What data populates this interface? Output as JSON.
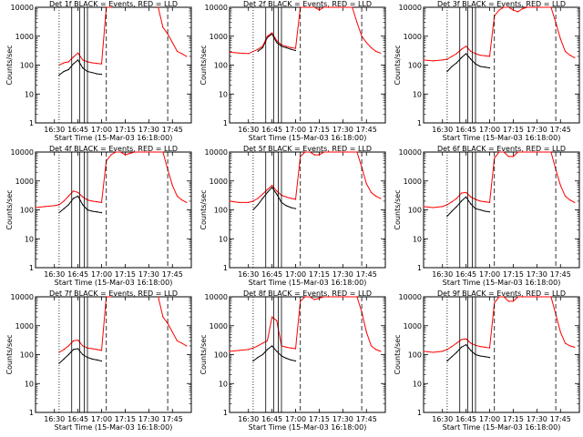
{
  "figure": {
    "ylabel": "Counts/sec",
    "xlabel": "Start Time (15-Mar-03 16:18:00)",
    "y_ticks": [
      "1",
      "10",
      "100",
      "1000",
      "10000"
    ],
    "x_ticks": [
      "16:30",
      "16:45",
      "17:00",
      "17:15",
      "17:30",
      "17:45"
    ],
    "events_color": "#000000",
    "lld_color": "#ff0000"
  },
  "chart_data": [
    {
      "type": "line",
      "title": "Det 1f BLACK = Events, RED = LLD",
      "xlabel": "Start Time (15-Mar-03 16:18:00)",
      "ylabel": "Counts/sec",
      "xlim": [
        "16:18",
        "17:57"
      ],
      "ylim": [
        1,
        10000
      ],
      "yscale": "log",
      "x": [
        "16:33",
        "16:36",
        "16:39",
        "16:42",
        "16:45",
        "16:48",
        "16:51",
        "16:54",
        "16:57",
        "17:00",
        "17:03",
        "17:06",
        "17:09",
        "17:12",
        "17:15",
        "17:18",
        "17:21",
        "17:24",
        "17:27",
        "17:30",
        "17:33",
        "17:36",
        "17:39",
        "17:42",
        "17:45",
        "17:48",
        "17:51",
        "17:54"
      ],
      "series": [
        {
          "name": "BLACK = Events",
          "values": [
            45,
            60,
            70,
            110,
            150,
            80,
            60,
            55,
            50,
            48,
            null,
            null,
            null,
            null,
            null,
            null,
            null,
            null,
            null,
            null,
            null,
            null,
            null,
            null,
            null,
            null,
            null,
            null
          ]
        },
        {
          "name": "RED = LLD",
          "values": [
            100,
            120,
            130,
            190,
            260,
            150,
            130,
            120,
            115,
            110,
            10000,
            10000,
            null,
            null,
            null,
            null,
            null,
            null,
            null,
            null,
            null,
            10000,
            2000,
            1200,
            600,
            300,
            250,
            200
          ]
        }
      ]
    },
    {
      "type": "line",
      "title": "Det 2f BLACK = Events, RED = LLD",
      "xlabel": "Start Time (15-Mar-03 16:18:00)",
      "ylabel": "Counts/sec",
      "xlim": [
        "16:18",
        "17:57"
      ],
      "ylim": [
        1,
        10000
      ],
      "yscale": "log",
      "x": [
        "16:18",
        "16:24",
        "16:30",
        "16:36",
        "16:39",
        "16:42",
        "16:45",
        "16:48",
        "16:51",
        "16:54",
        "16:57",
        "17:00",
        "17:03",
        "17:06",
        "17:09",
        "17:12",
        "17:15",
        "17:18",
        "17:21",
        "17:24",
        "17:27",
        "17:30",
        "17:33",
        "17:36",
        "17:39",
        "17:42",
        "17:45",
        "17:48",
        "17:51",
        "17:54"
      ],
      "series": [
        {
          "name": "BLACK = Events",
          "values": [
            null,
            null,
            null,
            300,
            400,
            900,
            1200,
            600,
            450,
            400,
            350,
            320,
            null,
            null,
            null,
            null,
            null,
            null,
            null,
            null,
            null,
            null,
            null,
            null,
            null,
            null,
            null,
            null,
            null,
            null
          ]
        },
        {
          "name": "RED = LLD",
          "values": [
            280,
            260,
            250,
            350,
            450,
            1000,
            1300,
            700,
            500,
            450,
            400,
            380,
            10000,
            10000,
            10000,
            10000,
            8000,
            10000,
            10000,
            10000,
            10000,
            10000,
            10000,
            10000,
            3000,
            1000,
            600,
            400,
            300,
            260
          ]
        }
      ]
    },
    {
      "type": "line",
      "title": "Det 3f BLACK = Events, RED = LLD",
      "xlabel": "Start Time (15-Mar-03 16:18:00)",
      "ylabel": "Counts/sec",
      "xlim": [
        "16:18",
        "17:57"
      ],
      "ylim": [
        1,
        10000
      ],
      "yscale": "log",
      "x": [
        "16:18",
        "16:24",
        "16:30",
        "16:33",
        "16:36",
        "16:39",
        "16:42",
        "16:45",
        "16:48",
        "16:51",
        "16:54",
        "16:57",
        "17:00",
        "17:03",
        "17:06",
        "17:09",
        "17:12",
        "17:15",
        "17:18",
        "17:21",
        "17:24",
        "17:27",
        "17:30",
        "17:33",
        "17:36",
        "17:39",
        "17:42",
        "17:45",
        "17:48",
        "17:51",
        "17:54"
      ],
      "series": [
        {
          "name": "BLACK = Events",
          "values": [
            null,
            null,
            null,
            60,
            90,
            120,
            180,
            250,
            160,
            110,
            90,
            85,
            80,
            null,
            null,
            null,
            null,
            null,
            null,
            null,
            null,
            null,
            null,
            null,
            null,
            null,
            null,
            null,
            null,
            null,
            null
          ]
        },
        {
          "name": "RED = LLD",
          "values": [
            150,
            140,
            150,
            160,
            200,
            250,
            350,
            450,
            300,
            250,
            220,
            210,
            200,
            5000,
            8000,
            10000,
            10000,
            8000,
            7000,
            9000,
            10000,
            10000,
            10000,
            10000,
            10000,
            10000,
            3000,
            800,
            300,
            220,
            180
          ]
        }
      ]
    },
    {
      "type": "line",
      "title": "Det 4f BLACK = Events, RED = LLD",
      "xlabel": "Start Time (15-Mar-03 16:18:00)",
      "ylabel": "Counts/sec",
      "xlim": [
        "16:18",
        "17:57"
      ],
      "ylim": [
        1,
        10000
      ],
      "yscale": "log",
      "x": [
        "16:18",
        "16:24",
        "16:30",
        "16:33",
        "16:36",
        "16:39",
        "16:42",
        "16:45",
        "16:48",
        "16:51",
        "16:54",
        "16:57",
        "17:00",
        "17:03",
        "17:06",
        "17:09",
        "17:12",
        "17:15",
        "17:18",
        "17:21",
        "17:24",
        "17:27",
        "17:30",
        "17:33",
        "17:36",
        "17:39",
        "17:42",
        "17:45",
        "17:48",
        "17:51",
        "17:54"
      ],
      "series": [
        {
          "name": "BLACK = Events",
          "values": [
            null,
            null,
            null,
            80,
            110,
            150,
            250,
            300,
            150,
            100,
            90,
            85,
            80,
            null,
            null,
            null,
            null,
            null,
            null,
            null,
            null,
            null,
            null,
            null,
            null,
            null,
            null,
            null,
            null,
            null,
            null
          ]
        },
        {
          "name": "RED = LLD",
          "values": [
            120,
            130,
            140,
            150,
            200,
            300,
            450,
            400,
            280,
            220,
            200,
            190,
            180,
            5000,
            8000,
            10000,
            10000,
            8000,
            9000,
            10000,
            10000,
            10000,
            10000,
            10000,
            10000,
            10000,
            2500,
            700,
            300,
            220,
            180
          ]
        }
      ]
    },
    {
      "type": "line",
      "title": "Det 5f BLACK = Events, RED = LLD",
      "xlabel": "Start Time (15-Mar-03 16:18:00)",
      "ylabel": "Counts/sec",
      "xlim": [
        "16:18",
        "17:57"
      ],
      "ylim": [
        1,
        10000
      ],
      "yscale": "log",
      "x": [
        "16:18",
        "16:24",
        "16:30",
        "16:33",
        "16:36",
        "16:39",
        "16:42",
        "16:45",
        "16:48",
        "16:51",
        "16:54",
        "16:57",
        "17:00",
        "17:03",
        "17:06",
        "17:09",
        "17:12",
        "17:15",
        "17:18",
        "17:21",
        "17:24",
        "17:27",
        "17:30",
        "17:33",
        "17:36",
        "17:39",
        "17:42",
        "17:45",
        "17:48",
        "17:51",
        "17:54"
      ],
      "series": [
        {
          "name": "BLACK = Events",
          "values": [
            null,
            null,
            null,
            100,
            150,
            250,
            400,
            600,
            350,
            180,
            140,
            120,
            110,
            null,
            null,
            null,
            null,
            null,
            null,
            null,
            null,
            null,
            null,
            null,
            null,
            null,
            null,
            null,
            null,
            null,
            null
          ]
        },
        {
          "name": "RED = LLD",
          "values": [
            200,
            180,
            180,
            200,
            250,
            350,
            500,
            700,
            450,
            320,
            280,
            250,
            230,
            7000,
            10000,
            10000,
            8000,
            8000,
            10000,
            10000,
            10000,
            10000,
            10000,
            10000,
            10000,
            10000,
            3000,
            800,
            400,
            300,
            250
          ]
        }
      ]
    },
    {
      "type": "line",
      "title": "Det 6f BLACK = Events, RED = LLD",
      "xlabel": "Start Time (15-Mar-03 16:18:00)",
      "ylabel": "Counts/sec",
      "xlim": [
        "16:18",
        "17:57"
      ],
      "ylim": [
        1,
        10000
      ],
      "yscale": "log",
      "x": [
        "16:18",
        "16:24",
        "16:30",
        "16:33",
        "16:36",
        "16:39",
        "16:42",
        "16:45",
        "16:48",
        "16:51",
        "16:54",
        "16:57",
        "17:00",
        "17:03",
        "17:06",
        "17:09",
        "17:12",
        "17:15",
        "17:18",
        "17:21",
        "17:24",
        "17:27",
        "17:30",
        "17:33",
        "17:36",
        "17:39",
        "17:42",
        "17:45",
        "17:48",
        "17:51",
        "17:54"
      ],
      "series": [
        {
          "name": "BLACK = Events",
          "values": [
            null,
            null,
            null,
            60,
            90,
            130,
            200,
            280,
            160,
            110,
            100,
            90,
            85,
            null,
            null,
            null,
            null,
            null,
            null,
            null,
            null,
            null,
            null,
            null,
            null,
            null,
            null,
            null,
            null,
            null,
            null
          ]
        },
        {
          "name": "RED = LLD",
          "values": [
            130,
            120,
            130,
            150,
            190,
            250,
            380,
            400,
            280,
            230,
            200,
            190,
            180,
            6000,
            10000,
            10000,
            7000,
            7000,
            10000,
            10000,
            10000,
            10000,
            10000,
            10000,
            10000,
            10000,
            2500,
            700,
            300,
            220,
            180
          ]
        }
      ]
    },
    {
      "type": "line",
      "title": "Det 7f BLACK = Events, RED = LLD",
      "xlabel": "Start Time (15-Mar-03 16:18:00)",
      "ylabel": "Counts/sec",
      "xlim": [
        "16:18",
        "17:57"
      ],
      "ylim": [
        1,
        10000
      ],
      "yscale": "log",
      "x": [
        "16:33",
        "16:36",
        "16:39",
        "16:42",
        "16:45",
        "16:48",
        "16:51",
        "16:54",
        "16:57",
        "17:00",
        "17:03",
        "17:06",
        "17:09",
        "17:12",
        "17:15",
        "17:18",
        "17:21",
        "17:24",
        "17:27",
        "17:30",
        "17:33",
        "17:36",
        "17:39",
        "17:42",
        "17:45",
        "17:48",
        "17:51",
        "17:54"
      ],
      "series": [
        {
          "name": "BLACK = Events",
          "values": [
            50,
            70,
            100,
            150,
            160,
            100,
            80,
            70,
            65,
            60,
            null,
            null,
            null,
            null,
            null,
            null,
            null,
            null,
            null,
            null,
            null,
            null,
            null,
            null,
            null,
            null,
            null,
            null
          ]
        },
        {
          "name": "RED = LLD",
          "values": [
            120,
            150,
            200,
            300,
            320,
            200,
            170,
            160,
            150,
            140,
            10000,
            10000,
            null,
            null,
            null,
            null,
            null,
            null,
            null,
            null,
            null,
            10000,
            2000,
            1200,
            600,
            300,
            250,
            200
          ]
        }
      ]
    },
    {
      "type": "line",
      "title": "Det 8f BLACK = Events, RED = LLD",
      "xlabel": "Start Time (15-Mar-03 16:18:00)",
      "ylabel": "Counts/sec",
      "xlim": [
        "16:18",
        "17:57"
      ],
      "ylim": [
        1,
        10000
      ],
      "yscale": "log",
      "x": [
        "16:18",
        "16:24",
        "16:30",
        "16:33",
        "16:36",
        "16:39",
        "16:42",
        "16:45",
        "16:48",
        "16:51",
        "16:54",
        "16:57",
        "17:00",
        "17:03",
        "17:06",
        "17:09",
        "17:12",
        "17:15",
        "17:18",
        "17:21",
        "17:24",
        "17:27",
        "17:30",
        "17:33",
        "17:36",
        "17:39",
        "17:42",
        "17:45",
        "17:48",
        "17:51",
        "17:54"
      ],
      "series": [
        {
          "name": "BLACK = Events",
          "values": [
            null,
            null,
            null,
            60,
            80,
            100,
            150,
            200,
            130,
            90,
            75,
            65,
            60,
            null,
            null,
            null,
            null,
            null,
            null,
            null,
            null,
            null,
            null,
            null,
            null,
            null,
            null,
            null,
            null,
            null,
            null
          ]
        },
        {
          "name": "RED = LLD",
          "values": [
            130,
            140,
            150,
            170,
            200,
            250,
            300,
            2000,
            1500,
            200,
            180,
            170,
            160,
            7000,
            10000,
            10000,
            8000,
            9000,
            10000,
            10000,
            10000,
            10000,
            10000,
            10000,
            10000,
            10000,
            3000,
            600,
            200,
            150,
            130
          ]
        }
      ]
    },
    {
      "type": "line",
      "title": "Det 9f BLACK = Events, RED = LLD",
      "xlabel": "Start Time (15-Mar-03 16:18:00)",
      "ylabel": "Counts/sec",
      "xlim": [
        "16:18",
        "17:57"
      ],
      "ylim": [
        1,
        10000
      ],
      "yscale": "log",
      "x": [
        "16:18",
        "16:24",
        "16:30",
        "16:33",
        "16:36",
        "16:39",
        "16:42",
        "16:45",
        "16:48",
        "16:51",
        "16:54",
        "16:57",
        "17:00",
        "17:03",
        "17:06",
        "17:09",
        "17:12",
        "17:15",
        "17:18",
        "17:21",
        "17:24",
        "17:27",
        "17:30",
        "17:33",
        "17:36",
        "17:39",
        "17:42",
        "17:45",
        "17:48",
        "17:51",
        "17:54"
      ],
      "series": [
        {
          "name": "BLACK = Events",
          "values": [
            null,
            null,
            null,
            60,
            85,
            120,
            180,
            220,
            140,
            100,
            90,
            85,
            80,
            null,
            null,
            null,
            null,
            null,
            null,
            null,
            null,
            null,
            null,
            null,
            null,
            null,
            null,
            null,
            null,
            null,
            null
          ]
        },
        {
          "name": "RED = LLD",
          "values": [
            130,
            120,
            130,
            150,
            190,
            250,
            330,
            350,
            250,
            210,
            190,
            180,
            170,
            6000,
            10000,
            10000,
            7000,
            7000,
            10000,
            10000,
            10000,
            10000,
            10000,
            10000,
            10000,
            10000,
            2500,
            600,
            250,
            200,
            180
          ]
        }
      ]
    }
  ]
}
